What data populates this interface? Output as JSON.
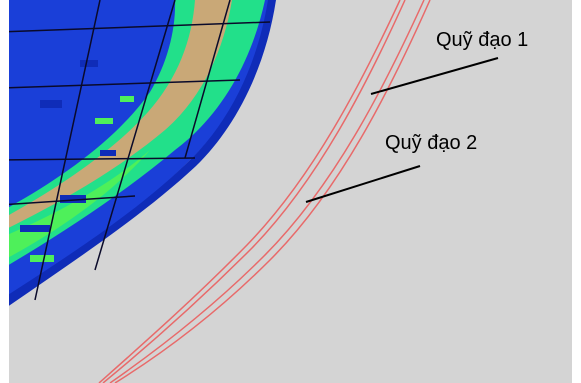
{
  "labels": {
    "trajectory_1": "Quỹ đạo 1",
    "trajectory_2": "Quỹ đạo 2"
  },
  "colors": {
    "background": "#d4d4d4",
    "trajectory_stroke": "#e86a6a",
    "leader_line": "#000000",
    "surface_blue": "#1a3fd8",
    "surface_green": "#22e08a",
    "surface_tan": "#c9a877",
    "surface_lime": "#4ef05a",
    "mesh_line": "#0a0a2a"
  }
}
